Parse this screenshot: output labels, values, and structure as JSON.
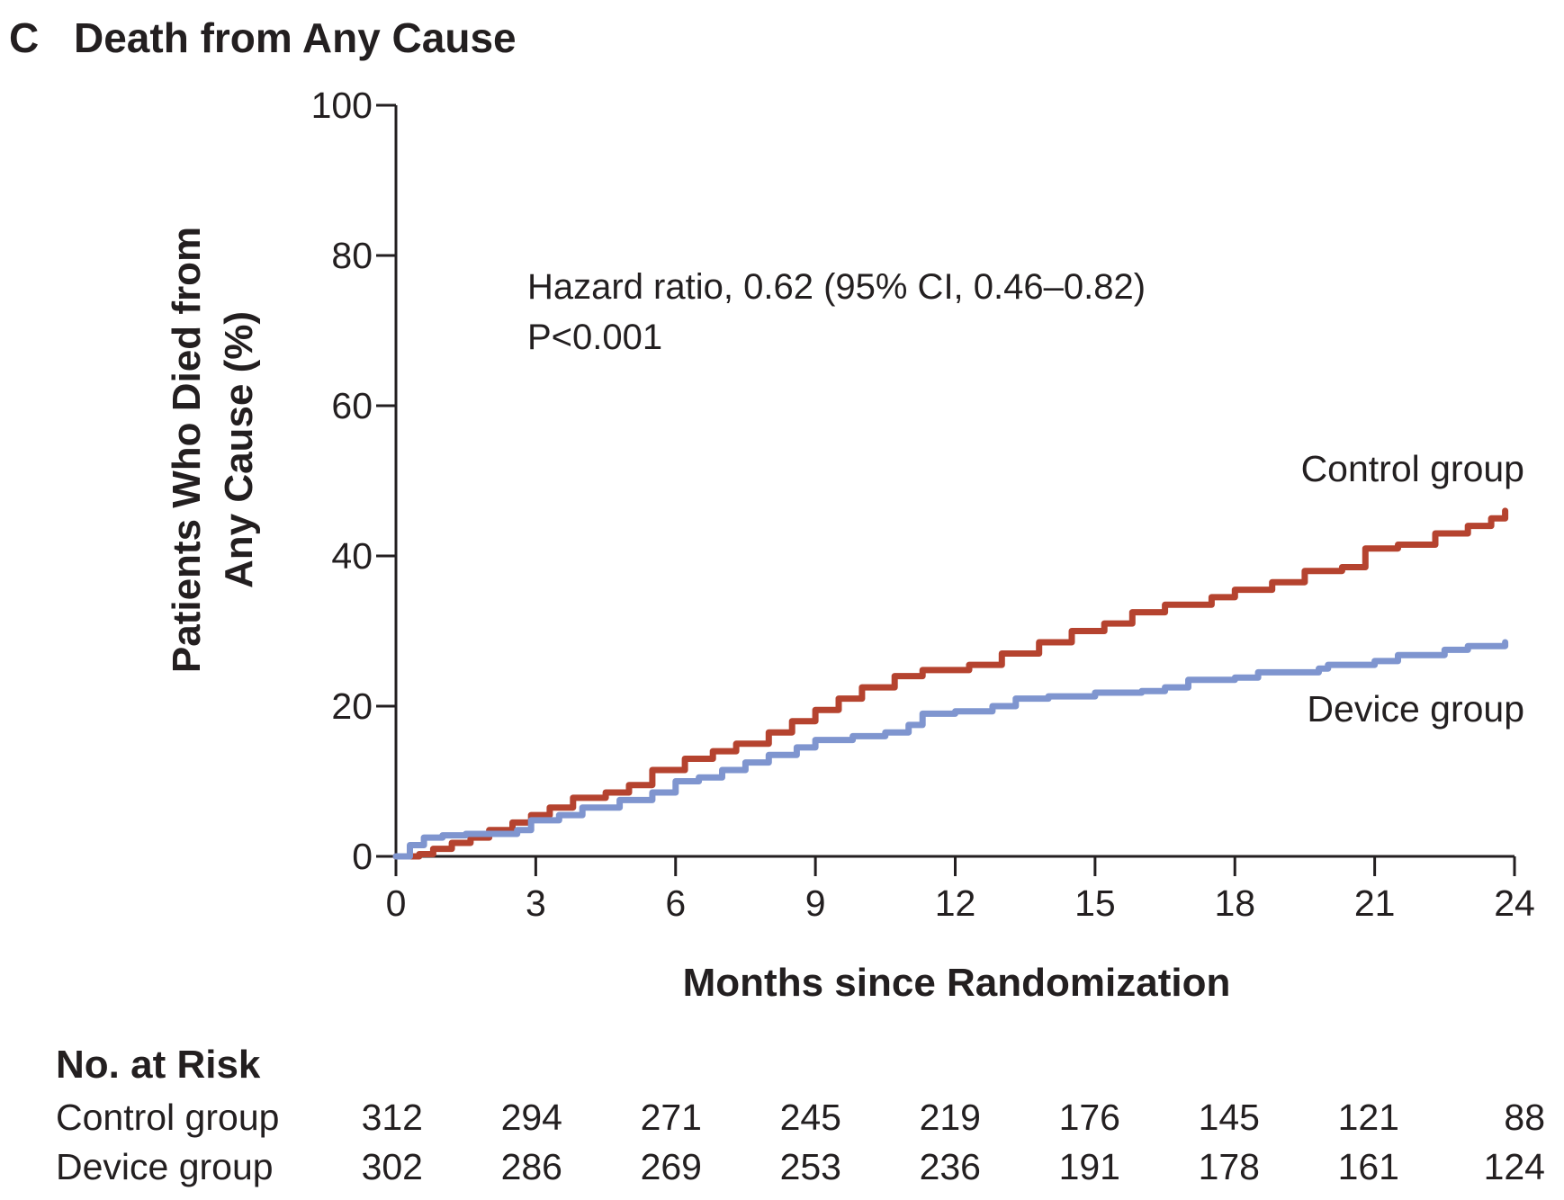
{
  "chart_data": {
    "type": "line",
    "panel_label": "C",
    "title": "Death from Any Cause",
    "xlabel": "Months since Randomization",
    "ylabel_lines": [
      "Patients Who Died from",
      "Any Cause (%)"
    ],
    "xlim": [
      0,
      24
    ],
    "ylim": [
      0,
      100
    ],
    "x_ticks": [
      0,
      3,
      6,
      9,
      12,
      15,
      18,
      21,
      24
    ],
    "y_ticks": [
      0,
      20,
      40,
      60,
      80,
      100
    ],
    "x_tick_labels": [
      "0",
      "3",
      "6",
      "9",
      "12",
      "15",
      "18",
      "21",
      "24"
    ],
    "y_tick_labels": [
      "0",
      "20",
      "40",
      "60",
      "80",
      "100"
    ],
    "grid": false,
    "annotation_lines": [
      "Hazard ratio, 0.62 (95% CI, 0.46–0.82)",
      "P<0.001"
    ],
    "colors": {
      "control": "#b5432f",
      "device": "#7f95cf"
    },
    "series": [
      {
        "name": "Control group",
        "color": "#b5432f",
        "points": [
          [
            0,
            0
          ],
          [
            0.5,
            0.3
          ],
          [
            0.8,
            1.0
          ],
          [
            1.2,
            1.8
          ],
          [
            1.6,
            2.5
          ],
          [
            2.0,
            3.5
          ],
          [
            2.5,
            4.5
          ],
          [
            2.9,
            5.5
          ],
          [
            3.3,
            6.5
          ],
          [
            3.8,
            7.8
          ],
          [
            4.5,
            8.5
          ],
          [
            5.0,
            9.5
          ],
          [
            5.5,
            11.5
          ],
          [
            6.2,
            13.0
          ],
          [
            6.8,
            14.0
          ],
          [
            7.3,
            15.0
          ],
          [
            8.0,
            16.5
          ],
          [
            8.5,
            18.0
          ],
          [
            9.0,
            19.5
          ],
          [
            9.5,
            21.0
          ],
          [
            10.0,
            22.5
          ],
          [
            10.7,
            24.0
          ],
          [
            11.3,
            24.8
          ],
          [
            12.3,
            25.5
          ],
          [
            13.0,
            27.0
          ],
          [
            13.8,
            28.5
          ],
          [
            14.5,
            30.0
          ],
          [
            15.2,
            31.0
          ],
          [
            15.8,
            32.5
          ],
          [
            16.5,
            33.5
          ],
          [
            17.5,
            34.5
          ],
          [
            18.0,
            35.5
          ],
          [
            18.8,
            36.5
          ],
          [
            19.5,
            38.0
          ],
          [
            20.3,
            38.5
          ],
          [
            20.8,
            41.0
          ],
          [
            21.5,
            41.5
          ],
          [
            22.3,
            43.0
          ],
          [
            23.0,
            44.0
          ],
          [
            23.5,
            45.0
          ],
          [
            23.8,
            46.0
          ]
        ]
      },
      {
        "name": "Device group",
        "color": "#7f95cf",
        "points": [
          [
            0,
            0
          ],
          [
            0.3,
            1.5
          ],
          [
            0.6,
            2.5
          ],
          [
            1.0,
            2.8
          ],
          [
            1.5,
            3.0
          ],
          [
            2.0,
            3.0
          ],
          [
            2.6,
            3.5
          ],
          [
            2.9,
            4.8
          ],
          [
            3.5,
            5.5
          ],
          [
            4.0,
            6.5
          ],
          [
            4.8,
            7.5
          ],
          [
            5.5,
            8.5
          ],
          [
            6.0,
            10.0
          ],
          [
            6.5,
            10.5
          ],
          [
            7.0,
            11.5
          ],
          [
            7.5,
            12.5
          ],
          [
            8.0,
            13.5
          ],
          [
            8.6,
            14.5
          ],
          [
            9.0,
            15.5
          ],
          [
            9.8,
            16.0
          ],
          [
            10.5,
            16.5
          ],
          [
            11.0,
            17.5
          ],
          [
            11.3,
            19.0
          ],
          [
            12.0,
            19.3
          ],
          [
            12.8,
            20.0
          ],
          [
            13.3,
            21.0
          ],
          [
            14.0,
            21.3
          ],
          [
            15.0,
            21.8
          ],
          [
            16.0,
            22.0
          ],
          [
            16.5,
            22.5
          ],
          [
            17.0,
            23.5
          ],
          [
            18.0,
            23.8
          ],
          [
            18.5,
            24.5
          ],
          [
            19.8,
            25.0
          ],
          [
            20.0,
            25.5
          ],
          [
            21.0,
            26.0
          ],
          [
            21.5,
            26.8
          ],
          [
            22.5,
            27.5
          ],
          [
            23.0,
            28.0
          ],
          [
            23.8,
            28.5
          ]
        ]
      }
    ],
    "risk_table": {
      "title": "No. at Risk",
      "rows": [
        {
          "label": "Control group",
          "values": [
            "312",
            "294",
            "271",
            "245",
            "219",
            "176",
            "145",
            "121",
            "88"
          ]
        },
        {
          "label": "Device group",
          "values": [
            "302",
            "286",
            "269",
            "253",
            "236",
            "191",
            "178",
            "161",
            "124"
          ]
        }
      ]
    }
  }
}
